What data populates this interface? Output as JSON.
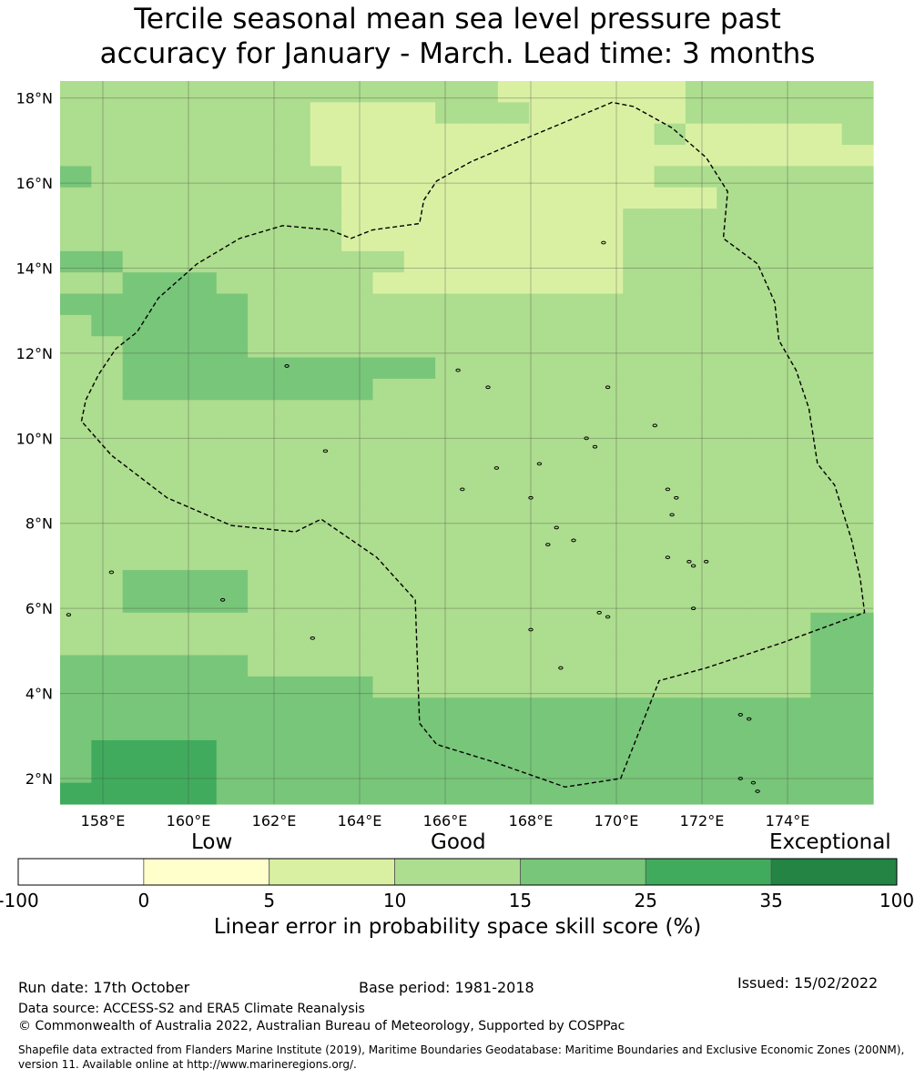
{
  "title_line1": "Tercile seasonal mean sea level pressure past",
  "title_line2": "accuracy for January - March. Lead time: 3 months",
  "map": {
    "lon_range": [
      157.0,
      176.0
    ],
    "lat_range": [
      1.4,
      18.4
    ],
    "lon_ticks": [
      158,
      160,
      162,
      164,
      166,
      168,
      170,
      172,
      174
    ],
    "lat_ticks": [
      2,
      4,
      6,
      8,
      10,
      12,
      14,
      16,
      18
    ],
    "lon_tick_labels": [
      "158°E",
      "160°E",
      "162°E",
      "164°E",
      "166°E",
      "168°E",
      "170°E",
      "172°E",
      "174°E"
    ],
    "lat_tick_labels": [
      "2°N",
      "4°N",
      "6°N",
      "8°N",
      "10°N",
      "12°N",
      "14°N",
      "16°N",
      "18°N"
    ],
    "grid_lines": true,
    "grid": {
      "lon0": 157.0,
      "lon1": 176.0,
      "lat_top": 18.4,
      "lat_bottom": 1.4,
      "rows": [
        "22222222222222111111222222",
        "22222222111122211111222222",
        "22222222111111111112111112",
        "22222222111111111111111111",
        "32222222211111111112222222",
        "22222222211111111111122222",
        "22222222211111111122222222",
        "22222222211111111122222222",
        "33222222222111111122222222",
        "22333222221111111122222222",
        "33333322222222222222222222",
        "23333322222222222222222222",
        "22333322222222222222222222",
        "22333333333322222222222222",
        "22333333332222222222222222",
        "22222222222222222222222222",
        "22222222222222222222222222",
        "22222222222222222222222222",
        "22222222222222222222222222",
        "22222222222222222222222222",
        "22222222222222222222222222",
        "22222222222222222222222222",
        "22222222222222222222222222",
        "22333322222222222222222222",
        "22333322222222222222222222",
        "22222222222222222222222233",
        "22222222222222222222222233",
        "33333322222222222222222233",
        "33333333332222222222222233",
        "33333333333333333333333333",
        "33333333333333333333333333",
        "34444333333333333333333333",
        "34444333333333333333333333",
        "44444333333333333333333333"
      ]
    },
    "eez_path": [
      [
        157.5,
        10.4
      ],
      [
        157.6,
        10.9
      ],
      [
        157.9,
        11.5
      ],
      [
        158.3,
        12.1
      ],
      [
        158.8,
        12.5
      ],
      [
        159.3,
        13.3
      ],
      [
        160.2,
        14.1
      ],
      [
        161.2,
        14.7
      ],
      [
        162.2,
        15.0
      ],
      [
        163.3,
        14.9
      ],
      [
        163.8,
        14.7
      ],
      [
        164.3,
        14.9
      ],
      [
        165.4,
        15.05
      ],
      [
        165.5,
        15.6
      ],
      [
        165.8,
        16.05
      ],
      [
        166.6,
        16.5
      ],
      [
        168.0,
        17.1
      ],
      [
        169.9,
        17.9
      ],
      [
        170.4,
        17.8
      ],
      [
        171.3,
        17.3
      ],
      [
        172.1,
        16.6
      ],
      [
        172.6,
        15.8
      ],
      [
        172.5,
        14.7
      ],
      [
        173.3,
        14.1
      ],
      [
        173.7,
        13.2
      ],
      [
        173.8,
        12.3
      ],
      [
        174.2,
        11.6
      ],
      [
        174.5,
        10.7
      ],
      [
        174.7,
        9.4
      ],
      [
        175.1,
        8.9
      ],
      [
        175.5,
        7.6
      ],
      [
        175.7,
        6.7
      ],
      [
        175.8,
        5.9
      ],
      [
        173.9,
        5.2
      ],
      [
        172.1,
        4.6
      ],
      [
        171.0,
        4.3
      ],
      [
        170.1,
        2.0
      ],
      [
        168.8,
        1.8
      ],
      [
        167.1,
        2.4
      ],
      [
        165.8,
        2.8
      ],
      [
        165.4,
        3.3
      ],
      [
        165.3,
        6.2
      ],
      [
        164.4,
        7.2
      ],
      [
        163.1,
        8.1
      ],
      [
        162.5,
        7.8
      ],
      [
        161.0,
        7.95
      ],
      [
        159.5,
        8.6
      ],
      [
        158.2,
        9.6
      ],
      [
        157.5,
        10.4
      ]
    ],
    "islands": [
      [
        169.7,
        14.6
      ],
      [
        166.3,
        11.6
      ],
      [
        162.3,
        11.7
      ],
      [
        167.0,
        11.2
      ],
      [
        169.8,
        11.2
      ],
      [
        170.9,
        10.3
      ],
      [
        163.2,
        9.7
      ],
      [
        169.3,
        10.0
      ],
      [
        169.5,
        9.8
      ],
      [
        168.2,
        9.4
      ],
      [
        167.2,
        9.3
      ],
      [
        166.4,
        8.8
      ],
      [
        171.2,
        8.8
      ],
      [
        171.4,
        8.6
      ],
      [
        168.0,
        8.6
      ],
      [
        171.3,
        8.2
      ],
      [
        168.6,
        7.9
      ],
      [
        169.0,
        7.6
      ],
      [
        168.4,
        7.5
      ],
      [
        171.2,
        7.2
      ],
      [
        171.7,
        7.1
      ],
      [
        172.1,
        7.1
      ],
      [
        171.8,
        7.0
      ],
      [
        158.2,
        6.85
      ],
      [
        160.8,
        6.2
      ],
      [
        171.8,
        6.0
      ],
      [
        169.6,
        5.9
      ],
      [
        169.8,
        5.8
      ],
      [
        157.2,
        5.85
      ],
      [
        168.0,
        5.5
      ],
      [
        162.9,
        5.3
      ],
      [
        168.7,
        4.6
      ],
      [
        172.9,
        3.5
      ],
      [
        173.1,
        3.4
      ],
      [
        172.9,
        2.0
      ],
      [
        173.2,
        1.9
      ],
      [
        173.3,
        1.7
      ]
    ],
    "palette": [
      "#ffffff",
      "#d9f0a3",
      "#addd8e",
      "#78c679",
      "#41ab5d",
      "#238443"
    ]
  },
  "colorbar": {
    "categories": [
      "Low",
      "Good",
      "Exceptional"
    ],
    "tick_labels": [
      "-100",
      "0",
      "5",
      "10",
      "15",
      "25",
      "35",
      "100"
    ],
    "colors": [
      "#ffffff",
      "#ffffcc",
      "#d9f0a3",
      "#addd8e",
      "#78c679",
      "#41ab5d",
      "#238443"
    ],
    "title": "Linear error in probability space skill score (%)"
  },
  "footer": {
    "run_date": "Run date: 17th October",
    "base_period": "Base period: 1981-2018",
    "issued": "Issued: 15/02/2022",
    "data_source": "Data source: ACCESS-S2 and ERA5 Climate Reanalysis",
    "copyright": "© Commonwealth of Australia 2022, Australian Bureau of Meteorology, Supported by COSPPac",
    "shapefile_line1": "Shapefile data extracted from Flanders Marine Institute (2019), Maritime Boundaries Geodatabase: Maritime Boundaries and Exclusive Economic Zones (200NM),",
    "shapefile_line2": "version 11. Available online at http://www.marineregions.org/."
  }
}
